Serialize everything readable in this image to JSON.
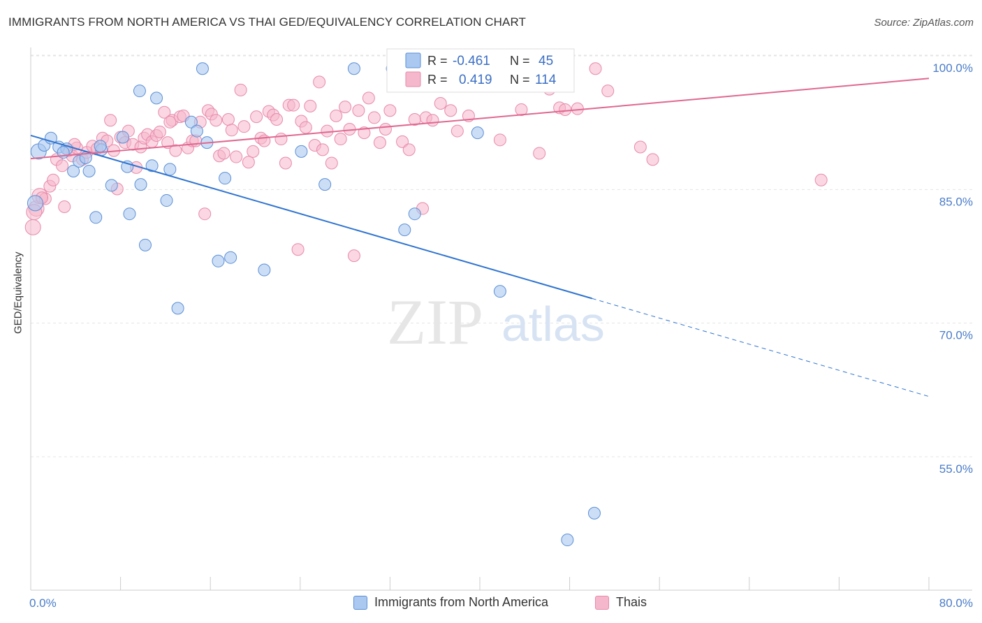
{
  "title": "IMMIGRANTS FROM NORTH AMERICA VS THAI GED/EQUIVALENCY CORRELATION CHART",
  "source": "Source: ZipAtlas.com",
  "colors": {
    "blue_fill": "#aac8f0",
    "blue_stroke": "#5b8fd6",
    "blue_line": "#2f74d0",
    "pink_fill": "#f5b7cb",
    "pink_stroke": "#e88aab",
    "pink_line": "#e06890",
    "axis_label": "#4a7cc9"
  },
  "legend_box": {
    "rows": [
      {
        "r_label": "R =",
        "r_value": "-0.461",
        "n_label": "N =",
        "n_value": "45"
      },
      {
        "r_label": "R =",
        "r_value": "0.419",
        "n_label": "N =",
        "n_value": "114"
      }
    ]
  },
  "bottom_legend": {
    "items": [
      {
        "label": "Immigrants from North America"
      },
      {
        "label": "Thais"
      }
    ]
  },
  "watermark": {
    "zip": "ZIP",
    "atlas": "atlas"
  },
  "chart_data": {
    "type": "scatter",
    "title": "IMMIGRANTS FROM NORTH AMERICA VS THAI GED/EQUIVALENCY CORRELATION CHART",
    "xlabel": "",
    "ylabel": "GED/Equivalency",
    "xlim": [
      0,
      80
    ],
    "ylim": [
      40.5,
      101.5
    ],
    "x_ticks_labeled": [
      "0.0%",
      "80.0%"
    ],
    "y_ticks": [
      {
        "value": 100,
        "label": "100.0%"
      },
      {
        "value": 85,
        "label": "85.0%"
      },
      {
        "value": 70,
        "label": "70.0%"
      },
      {
        "value": 55,
        "label": "55.0%"
      }
    ],
    "grid": "horizontal dashed",
    "legend_position": "top-center",
    "series": [
      {
        "name": "Immigrants from North America",
        "trend": {
          "x": [
            0,
            50
          ],
          "y": [
            92.4,
            74.1
          ],
          "dashed_extension_to": [
            80,
            63.1
          ]
        },
        "points": [
          [
            0.4,
            84.8
          ],
          [
            0.7,
            90.6
          ],
          [
            1.2,
            91.3
          ],
          [
            1.8,
            92.1
          ],
          [
            2.5,
            91.1
          ],
          [
            3.2,
            90.9
          ],
          [
            3.8,
            88.4
          ],
          [
            4.3,
            89.5
          ],
          [
            5.2,
            88.4
          ],
          [
            5.8,
            83.2
          ],
          [
            6.3,
            90.8
          ],
          [
            7.2,
            86.8
          ],
          [
            8.2,
            92.2
          ],
          [
            8.6,
            88.9
          ],
          [
            8.8,
            83.6
          ],
          [
            9.7,
            97.4
          ],
          [
            9.8,
            86.9
          ],
          [
            10.2,
            80.1
          ],
          [
            10.8,
            89.0
          ],
          [
            11.2,
            96.6
          ],
          [
            12.1,
            85.1
          ],
          [
            12.4,
            88.6
          ],
          [
            13.1,
            73.0
          ],
          [
            14.3,
            93.9
          ],
          [
            14.8,
            92.9
          ],
          [
            15.3,
            99.9
          ],
          [
            15.7,
            91.6
          ],
          [
            16.7,
            78.3
          ],
          [
            17.3,
            87.6
          ],
          [
            17.8,
            78.7
          ],
          [
            20.8,
            77.3
          ],
          [
            24.1,
            90.6
          ],
          [
            26.2,
            86.9
          ],
          [
            28.8,
            99.9
          ],
          [
            32.2,
            99.9
          ],
          [
            33.3,
            81.8
          ],
          [
            33.6,
            99.9
          ],
          [
            34.2,
            83.6
          ],
          [
            39.8,
            92.7
          ],
          [
            41.8,
            74.9
          ],
          [
            50.2,
            50.0
          ],
          [
            47.8,
            47.0
          ],
          [
            4.9,
            89.9
          ],
          [
            2.9,
            90.5
          ],
          [
            6.2,
            91.2
          ]
        ]
      },
      {
        "name": "Thais",
        "trend": {
          "x": [
            0,
            80
          ],
          "y": [
            89.8,
            98.8
          ]
        },
        "points": [
          [
            0.2,
            82.1
          ],
          [
            0.5,
            84.2
          ],
          [
            0.8,
            85.6
          ],
          [
            1.3,
            85.3
          ],
          [
            1.7,
            86.7
          ],
          [
            2.0,
            87.4
          ],
          [
            2.3,
            89.7
          ],
          [
            2.8,
            89.0
          ],
          [
            3.0,
            84.4
          ],
          [
            3.4,
            90.7
          ],
          [
            3.7,
            90.1
          ],
          [
            4.1,
            91.0
          ],
          [
            4.6,
            89.7
          ],
          [
            5.0,
            90.5
          ],
          [
            5.5,
            91.2
          ],
          [
            5.9,
            90.9
          ],
          [
            6.4,
            92.1
          ],
          [
            6.8,
            91.8
          ],
          [
            7.1,
            94.1
          ],
          [
            7.4,
            90.7
          ],
          [
            7.7,
            86.4
          ],
          [
            8.0,
            92.2
          ],
          [
            8.4,
            91.6
          ],
          [
            8.7,
            92.9
          ],
          [
            9.1,
            91.4
          ],
          [
            9.4,
            88.8
          ],
          [
            9.8,
            91.1
          ],
          [
            10.1,
            92.1
          ],
          [
            10.4,
            92.5
          ],
          [
            10.8,
            91.7
          ],
          [
            11.2,
            92.4
          ],
          [
            11.5,
            92.8
          ],
          [
            11.9,
            95.0
          ],
          [
            12.2,
            91.6
          ],
          [
            12.6,
            94.1
          ],
          [
            12.9,
            90.7
          ],
          [
            13.3,
            94.5
          ],
          [
            13.6,
            94.6
          ],
          [
            14.0,
            91.0
          ],
          [
            14.4,
            91.8
          ],
          [
            14.7,
            91.8
          ],
          [
            15.1,
            93.9
          ],
          [
            15.5,
            83.6
          ],
          [
            15.8,
            95.2
          ],
          [
            16.1,
            94.8
          ],
          [
            16.5,
            94.1
          ],
          [
            16.8,
            90.1
          ],
          [
            17.2,
            90.4
          ],
          [
            17.6,
            94.2
          ],
          [
            17.9,
            93.0
          ],
          [
            18.3,
            90.0
          ],
          [
            18.7,
            97.5
          ],
          [
            19.0,
            93.4
          ],
          [
            19.4,
            89.4
          ],
          [
            19.8,
            90.6
          ],
          [
            20.1,
            94.5
          ],
          [
            20.5,
            92.1
          ],
          [
            20.8,
            91.8
          ],
          [
            21.2,
            95.1
          ],
          [
            21.6,
            94.7
          ],
          [
            21.9,
            94.2
          ],
          [
            22.3,
            92.0
          ],
          [
            22.7,
            89.3
          ],
          [
            23.0,
            95.8
          ],
          [
            23.4,
            95.8
          ],
          [
            23.8,
            79.6
          ],
          [
            24.1,
            94.0
          ],
          [
            24.5,
            93.3
          ],
          [
            24.9,
            95.7
          ],
          [
            25.3,
            91.3
          ],
          [
            25.7,
            98.4
          ],
          [
            26.0,
            90.8
          ],
          [
            26.4,
            92.9
          ],
          [
            26.8,
            89.3
          ],
          [
            27.2,
            94.6
          ],
          [
            27.6,
            92.0
          ],
          [
            28.0,
            95.6
          ],
          [
            28.4,
            93.1
          ],
          [
            28.8,
            78.9
          ],
          [
            29.2,
            95.2
          ],
          [
            29.7,
            92.7
          ],
          [
            30.1,
            96.6
          ],
          [
            30.6,
            94.4
          ],
          [
            31.1,
            91.6
          ],
          [
            31.6,
            93.1
          ],
          [
            32.0,
            95.2
          ],
          [
            32.6,
            98.1
          ],
          [
            33.1,
            91.7
          ],
          [
            33.7,
            90.8
          ],
          [
            34.2,
            94.2
          ],
          [
            34.9,
            84.2
          ],
          [
            35.2,
            94.4
          ],
          [
            35.8,
            94.1
          ],
          [
            36.5,
            96.0
          ],
          [
            37.4,
            95.2
          ],
          [
            38.0,
            92.9
          ],
          [
            39.0,
            94.6
          ],
          [
            40.1,
            99.3
          ],
          [
            41.8,
            91.9
          ],
          [
            43.7,
            95.3
          ],
          [
            45.3,
            90.4
          ],
          [
            46.2,
            97.6
          ],
          [
            47.1,
            95.5
          ],
          [
            47.6,
            95.3
          ],
          [
            48.7,
            95.4
          ],
          [
            50.3,
            99.9
          ],
          [
            51.4,
            97.4
          ],
          [
            54.3,
            91.1
          ],
          [
            55.4,
            89.7
          ],
          [
            70.4,
            87.4
          ],
          [
            0.3,
            83.8
          ],
          [
            1.0,
            85.4
          ],
          [
            3.9,
            91.4
          ],
          [
            12.4,
            93.9
          ]
        ]
      }
    ]
  }
}
